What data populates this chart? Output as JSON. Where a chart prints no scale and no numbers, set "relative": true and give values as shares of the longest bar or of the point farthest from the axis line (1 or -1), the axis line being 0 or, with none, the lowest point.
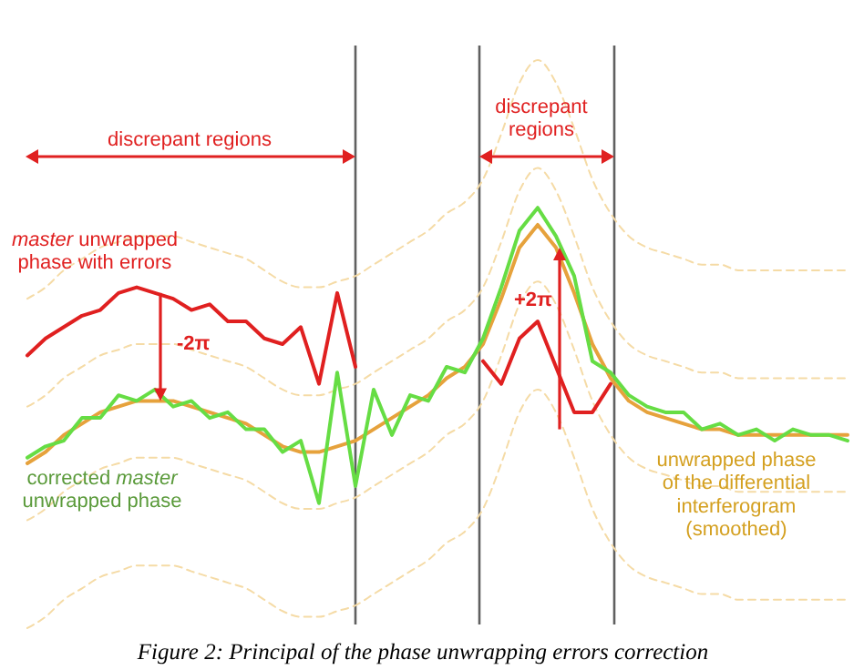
{
  "chart_data": {
    "type": "line",
    "relative": true,
    "marker": "none",
    "categories": [
      null,
      null,
      null,
      null,
      null,
      null,
      null,
      null,
      null,
      null,
      null,
      null,
      null,
      null,
      null,
      null,
      null,
      null,
      null,
      null,
      null,
      null,
      null,
      null,
      null,
      null,
      null,
      null,
      null,
      null,
      null,
      null,
      null,
      null,
      null,
      null,
      null,
      null,
      null,
      null,
      null,
      null,
      null,
      null,
      null,
      null
    ],
    "series": [
      {
        "color": "#f5dba6",
        "line_style": "dashed",
        "values": [
          0.58,
          0.6,
          0.63,
          0.65,
          0.67,
          0.68,
          0.69,
          0.69,
          0.69,
          0.68,
          0.67,
          0.66,
          0.65,
          0.63,
          0.61,
          0.6,
          0.6,
          0.61,
          0.62,
          0.64,
          0.66,
          0.68,
          0.7,
          0.73,
          0.75,
          0.79,
          0.87,
          0.96,
          1.0,
          0.96,
          0.88,
          0.79,
          0.73,
          0.69,
          0.67,
          0.66,
          0.65,
          0.64,
          0.64,
          0.63,
          0.63,
          0.63,
          0.63,
          0.63,
          0.63,
          0.63
        ]
      },
      {
        "color": "#f5dba6",
        "line_style": "dashed",
        "values": [
          0.39,
          0.41,
          0.44,
          0.46,
          0.48,
          0.49,
          0.5,
          0.5,
          0.5,
          0.49,
          0.48,
          0.47,
          0.46,
          0.44,
          0.42,
          0.41,
          0.41,
          0.42,
          0.43,
          0.45,
          0.47,
          0.49,
          0.51,
          0.54,
          0.56,
          0.6,
          0.68,
          0.77,
          0.81,
          0.77,
          0.69,
          0.6,
          0.54,
          0.5,
          0.48,
          0.47,
          0.46,
          0.45,
          0.45,
          0.44,
          0.44,
          0.44,
          0.44,
          0.44,
          0.44,
          0.44
        ]
      },
      {
        "color": "#f5dba6",
        "line_style": "dashed",
        "values": [
          0.19,
          0.21,
          0.24,
          0.26,
          0.28,
          0.29,
          0.3,
          0.3,
          0.3,
          0.29,
          0.28,
          0.27,
          0.26,
          0.24,
          0.22,
          0.21,
          0.21,
          0.22,
          0.23,
          0.25,
          0.27,
          0.29,
          0.31,
          0.34,
          0.36,
          0.4,
          0.48,
          0.57,
          0.61,
          0.57,
          0.49,
          0.4,
          0.34,
          0.3,
          0.28,
          0.27,
          0.26,
          0.25,
          0.25,
          0.24,
          0.24,
          0.24,
          0.24,
          0.24,
          0.24,
          0.24
        ]
      },
      {
        "color": "#f5dba6",
        "line_style": "dashed",
        "values": [
          0.0,
          0.02,
          0.05,
          0.07,
          0.09,
          0.1,
          0.11,
          0.11,
          0.11,
          0.1,
          0.09,
          0.08,
          0.07,
          0.05,
          0.03,
          0.02,
          0.02,
          0.03,
          0.04,
          0.06,
          0.08,
          0.1,
          0.12,
          0.15,
          0.17,
          0.21,
          0.29,
          0.38,
          0.42,
          0.38,
          0.3,
          0.21,
          0.15,
          0.11,
          0.09,
          0.08,
          0.07,
          0.06,
          0.06,
          0.05,
          0.05,
          0.05,
          0.05,
          0.05,
          0.05,
          0.05
        ]
      },
      {
        "color": "#e6a23c",
        "line_style": "solid",
        "values": [
          0.29,
          0.31,
          0.34,
          0.36,
          0.38,
          0.39,
          0.4,
          0.4,
          0.4,
          0.39,
          0.38,
          0.37,
          0.36,
          0.34,
          0.32,
          0.31,
          0.31,
          0.32,
          0.33,
          0.35,
          0.37,
          0.39,
          0.41,
          0.44,
          0.46,
          0.5,
          0.58,
          0.67,
          0.71,
          0.67,
          0.59,
          0.5,
          0.44,
          0.4,
          0.38,
          0.37,
          0.36,
          0.35,
          0.35,
          0.34,
          0.34,
          0.34,
          0.34,
          0.34,
          0.34,
          0.34
        ]
      },
      {
        "color": "#66dd44",
        "line_style": "solid",
        "values": [
          0.3,
          0.32,
          0.33,
          0.37,
          0.37,
          0.41,
          0.4,
          0.42,
          0.39,
          0.4,
          0.37,
          0.38,
          0.35,
          0.35,
          0.31,
          0.33,
          0.22,
          0.45,
          0.25,
          0.42,
          0.34,
          0.41,
          0.4,
          0.46,
          0.45,
          0.51,
          0.6,
          0.7,
          0.74,
          0.69,
          0.62,
          0.47,
          0.45,
          0.41,
          0.39,
          0.38,
          0.38,
          0.35,
          0.36,
          0.34,
          0.35,
          0.33,
          0.35,
          0.34,
          0.34,
          0.33
        ]
      },
      {
        "color": "#e02020",
        "line_style": "solid",
        "values": [
          0.48,
          0.51,
          0.53,
          0.55,
          0.56,
          0.59,
          0.6,
          0.59,
          0.58,
          0.56,
          0.57,
          0.54,
          0.54,
          0.51,
          0.5,
          0.53,
          0.43,
          0.59,
          0.46,
          null,
          null,
          null,
          null,
          null,
          null,
          0.47,
          0.43,
          0.51,
          0.54,
          0.46,
          0.38,
          0.38,
          0.43,
          null,
          null,
          null,
          null,
          null,
          null,
          null,
          null,
          null,
          null,
          null,
          null,
          null
        ]
      }
    ],
    "annotations": [
      "discrepant regions",
      "discrepant\nregions",
      "master unwrapped\nphase with errors",
      "-2π",
      "+2π",
      "corrected master\nunwrapped phase",
      "unwrapped phase\nof the differential\ninterferogram\n(smoothed)",
      "Figure 2: Principal of the phase unwrapping errors correction"
    ]
  }
}
